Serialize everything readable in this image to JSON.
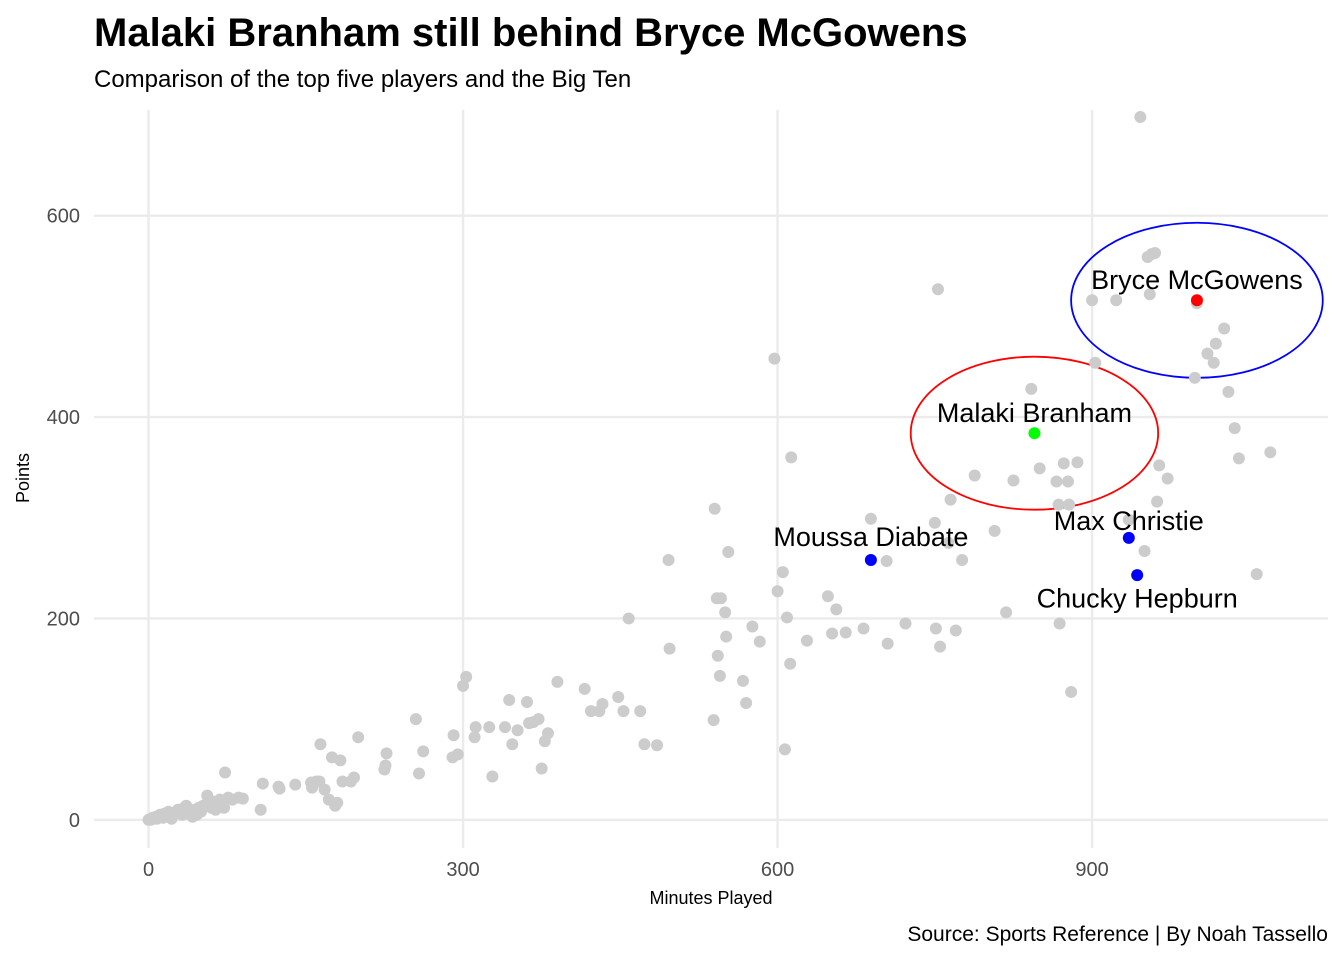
{
  "chart_data": {
    "type": "scatter",
    "title": "Malaki Branham still behind Bryce McGowens",
    "subtitle": "Comparison of the top five players and the Big Ten",
    "xlabel": "Minutes Played",
    "ylabel": "Points",
    "caption": "Source: Sports Reference | By Noah Tassello",
    "xlim": [
      -52,
      1125
    ],
    "ylim": [
      -28,
      705
    ],
    "x_ticks": [
      0,
      300,
      600,
      900
    ],
    "y_ticks": [
      0,
      200,
      400,
      600
    ],
    "grid": true,
    "background_color": "#cccccc",
    "series": [
      {
        "color": "#cccccc",
        "points": [
          [
            0,
            0
          ],
          [
            2,
            0
          ],
          [
            3,
            1
          ],
          [
            4,
            2
          ],
          [
            5,
            1
          ],
          [
            6,
            2
          ],
          [
            7,
            3
          ],
          [
            8,
            1
          ],
          [
            9,
            2
          ],
          [
            10,
            4
          ],
          [
            11,
            5
          ],
          [
            12,
            3
          ],
          [
            14,
            2
          ],
          [
            15,
            6
          ],
          [
            17,
            5
          ],
          [
            19,
            8
          ],
          [
            20,
            4
          ],
          [
            22,
            1
          ],
          [
            24,
            6
          ],
          [
            26,
            7
          ],
          [
            28,
            10
          ],
          [
            30,
            9
          ],
          [
            32,
            5
          ],
          [
            34,
            12
          ],
          [
            36,
            14
          ],
          [
            38,
            6
          ],
          [
            40,
            8
          ],
          [
            42,
            3
          ],
          [
            44,
            10
          ],
          [
            46,
            5
          ],
          [
            48,
            12
          ],
          [
            50,
            8
          ],
          [
            52,
            14
          ],
          [
            56,
            24
          ],
          [
            60,
            12
          ],
          [
            62,
            18
          ],
          [
            64,
            10
          ],
          [
            66,
            16
          ],
          [
            68,
            20
          ],
          [
            70,
            14
          ],
          [
            72,
            12
          ],
          [
            73,
            47
          ],
          [
            76,
            22
          ],
          [
            80,
            20
          ],
          [
            86,
            22
          ],
          [
            90,
            21
          ],
          [
            107,
            10
          ],
          [
            109,
            36
          ],
          [
            124,
            33
          ],
          [
            125,
            31
          ],
          [
            140,
            35
          ],
          [
            155,
            37
          ],
          [
            156,
            32
          ],
          [
            160,
            38
          ],
          [
            163,
            38
          ],
          [
            164,
            75
          ],
          [
            168,
            30
          ],
          [
            172,
            20
          ],
          [
            175,
            62
          ],
          [
            178,
            14
          ],
          [
            180,
            17
          ],
          [
            183,
            59
          ],
          [
            185,
            38
          ],
          [
            193,
            38
          ],
          [
            196,
            42
          ],
          [
            200,
            82
          ],
          [
            225,
            50
          ],
          [
            226,
            54
          ],
          [
            227,
            66
          ],
          [
            255,
            100
          ],
          [
            258,
            46
          ],
          [
            262,
            68
          ],
          [
            290,
            62
          ],
          [
            291,
            84
          ],
          [
            295,
            65
          ],
          [
            300,
            133
          ],
          [
            303,
            142
          ],
          [
            311,
            82
          ],
          [
            312,
            92
          ],
          [
            325,
            92
          ],
          [
            328,
            43
          ],
          [
            340,
            92
          ],
          [
            344,
            119
          ],
          [
            347,
            75
          ],
          [
            352,
            89
          ],
          [
            361,
            117
          ],
          [
            363,
            96
          ],
          [
            367,
            97
          ],
          [
            372,
            100
          ],
          [
            375,
            51
          ],
          [
            378,
            78
          ],
          [
            381,
            86
          ],
          [
            390,
            137
          ],
          [
            416,
            130
          ],
          [
            422,
            108
          ],
          [
            430,
            108
          ],
          [
            433,
            115
          ],
          [
            448,
            122
          ],
          [
            453,
            108
          ],
          [
            458,
            200
          ],
          [
            469,
            108
          ],
          [
            473,
            75
          ],
          [
            485,
            74
          ],
          [
            496,
            258
          ],
          [
            497,
            170
          ],
          [
            540,
            309
          ],
          [
            539,
            99
          ],
          [
            542,
            220
          ],
          [
            543,
            163
          ],
          [
            545,
            143
          ],
          [
            546,
            220
          ],
          [
            550,
            206
          ],
          [
            551,
            182
          ],
          [
            553,
            266
          ],
          [
            567,
            138
          ],
          [
            570,
            116
          ],
          [
            576,
            192
          ],
          [
            583,
            177
          ],
          [
            597,
            458
          ],
          [
            600,
            227
          ],
          [
            605,
            246
          ],
          [
            607,
            70
          ],
          [
            609,
            201
          ],
          [
            612,
            155
          ],
          [
            613,
            360
          ],
          [
            628,
            178
          ],
          [
            648,
            222
          ],
          [
            652,
            185
          ],
          [
            656,
            209
          ],
          [
            665,
            186
          ],
          [
            682,
            190
          ],
          [
            689,
            299
          ],
          [
            704,
            257
          ],
          [
            705,
            175
          ],
          [
            722,
            195
          ],
          [
            750,
            295
          ],
          [
            751,
            190
          ],
          [
            753,
            527
          ],
          [
            755,
            172
          ],
          [
            763,
            275
          ],
          [
            765,
            318
          ],
          [
            770,
            188
          ],
          [
            776,
            258
          ],
          [
            788,
            342
          ],
          [
            807,
            287
          ],
          [
            818,
            206
          ],
          [
            825,
            337
          ],
          [
            842,
            428
          ],
          [
            850,
            349
          ],
          [
            866,
            336
          ],
          [
            868,
            313
          ],
          [
            869,
            195
          ],
          [
            873,
            354
          ],
          [
            877,
            336
          ],
          [
            878,
            313
          ],
          [
            880,
            127
          ],
          [
            886,
            355
          ],
          [
            900,
            516
          ],
          [
            903,
            454
          ],
          [
            923,
            516
          ],
          [
            935,
            298
          ],
          [
            946,
            698
          ],
          [
            950,
            267
          ],
          [
            953,
            559
          ],
          [
            955,
            522
          ],
          [
            957,
            562
          ],
          [
            960,
            563
          ],
          [
            962,
            316
          ],
          [
            964,
            352
          ],
          [
            972,
            339
          ],
          [
            998,
            439
          ],
          [
            1000,
            513
          ],
          [
            1010,
            463
          ],
          [
            1016,
            454
          ],
          [
            1018,
            473
          ],
          [
            1026,
            488
          ],
          [
            1030,
            425
          ],
          [
            1036,
            389
          ],
          [
            1040,
            359
          ],
          [
            1057,
            244
          ],
          [
            1070,
            365
          ]
        ]
      }
    ],
    "highlighted_players": [
      {
        "name": "Bryce McGowens",
        "x": 1000,
        "y": 516,
        "color": "#ff0000",
        "label_x": 1000,
        "label_y": 536
      },
      {
        "name": "Malaki Branham",
        "x": 845,
        "y": 384,
        "color": "#00ff00",
        "label_x": 845,
        "label_y": 404
      },
      {
        "name": "Max Christie",
        "x": 935,
        "y": 280,
        "color": "#0000ff",
        "label_x": 935,
        "label_y": 297
      },
      {
        "name": "Moussa Diabate",
        "x": 689,
        "y": 258,
        "color": "#0000ff",
        "label_x": 689,
        "label_y": 281
      },
      {
        "name": "Chucky Hepburn",
        "x": 943,
        "y": 243,
        "color": "#0000ff",
        "label_x": 943,
        "label_y": 220
      }
    ],
    "ellipses": [
      {
        "cx": 1000,
        "cy": 516,
        "rx": 120,
        "ry": 77,
        "color": "#0000ff"
      },
      {
        "cx": 845,
        "cy": 384,
        "rx": 118,
        "ry": 76,
        "color": "#ff0000"
      }
    ]
  }
}
